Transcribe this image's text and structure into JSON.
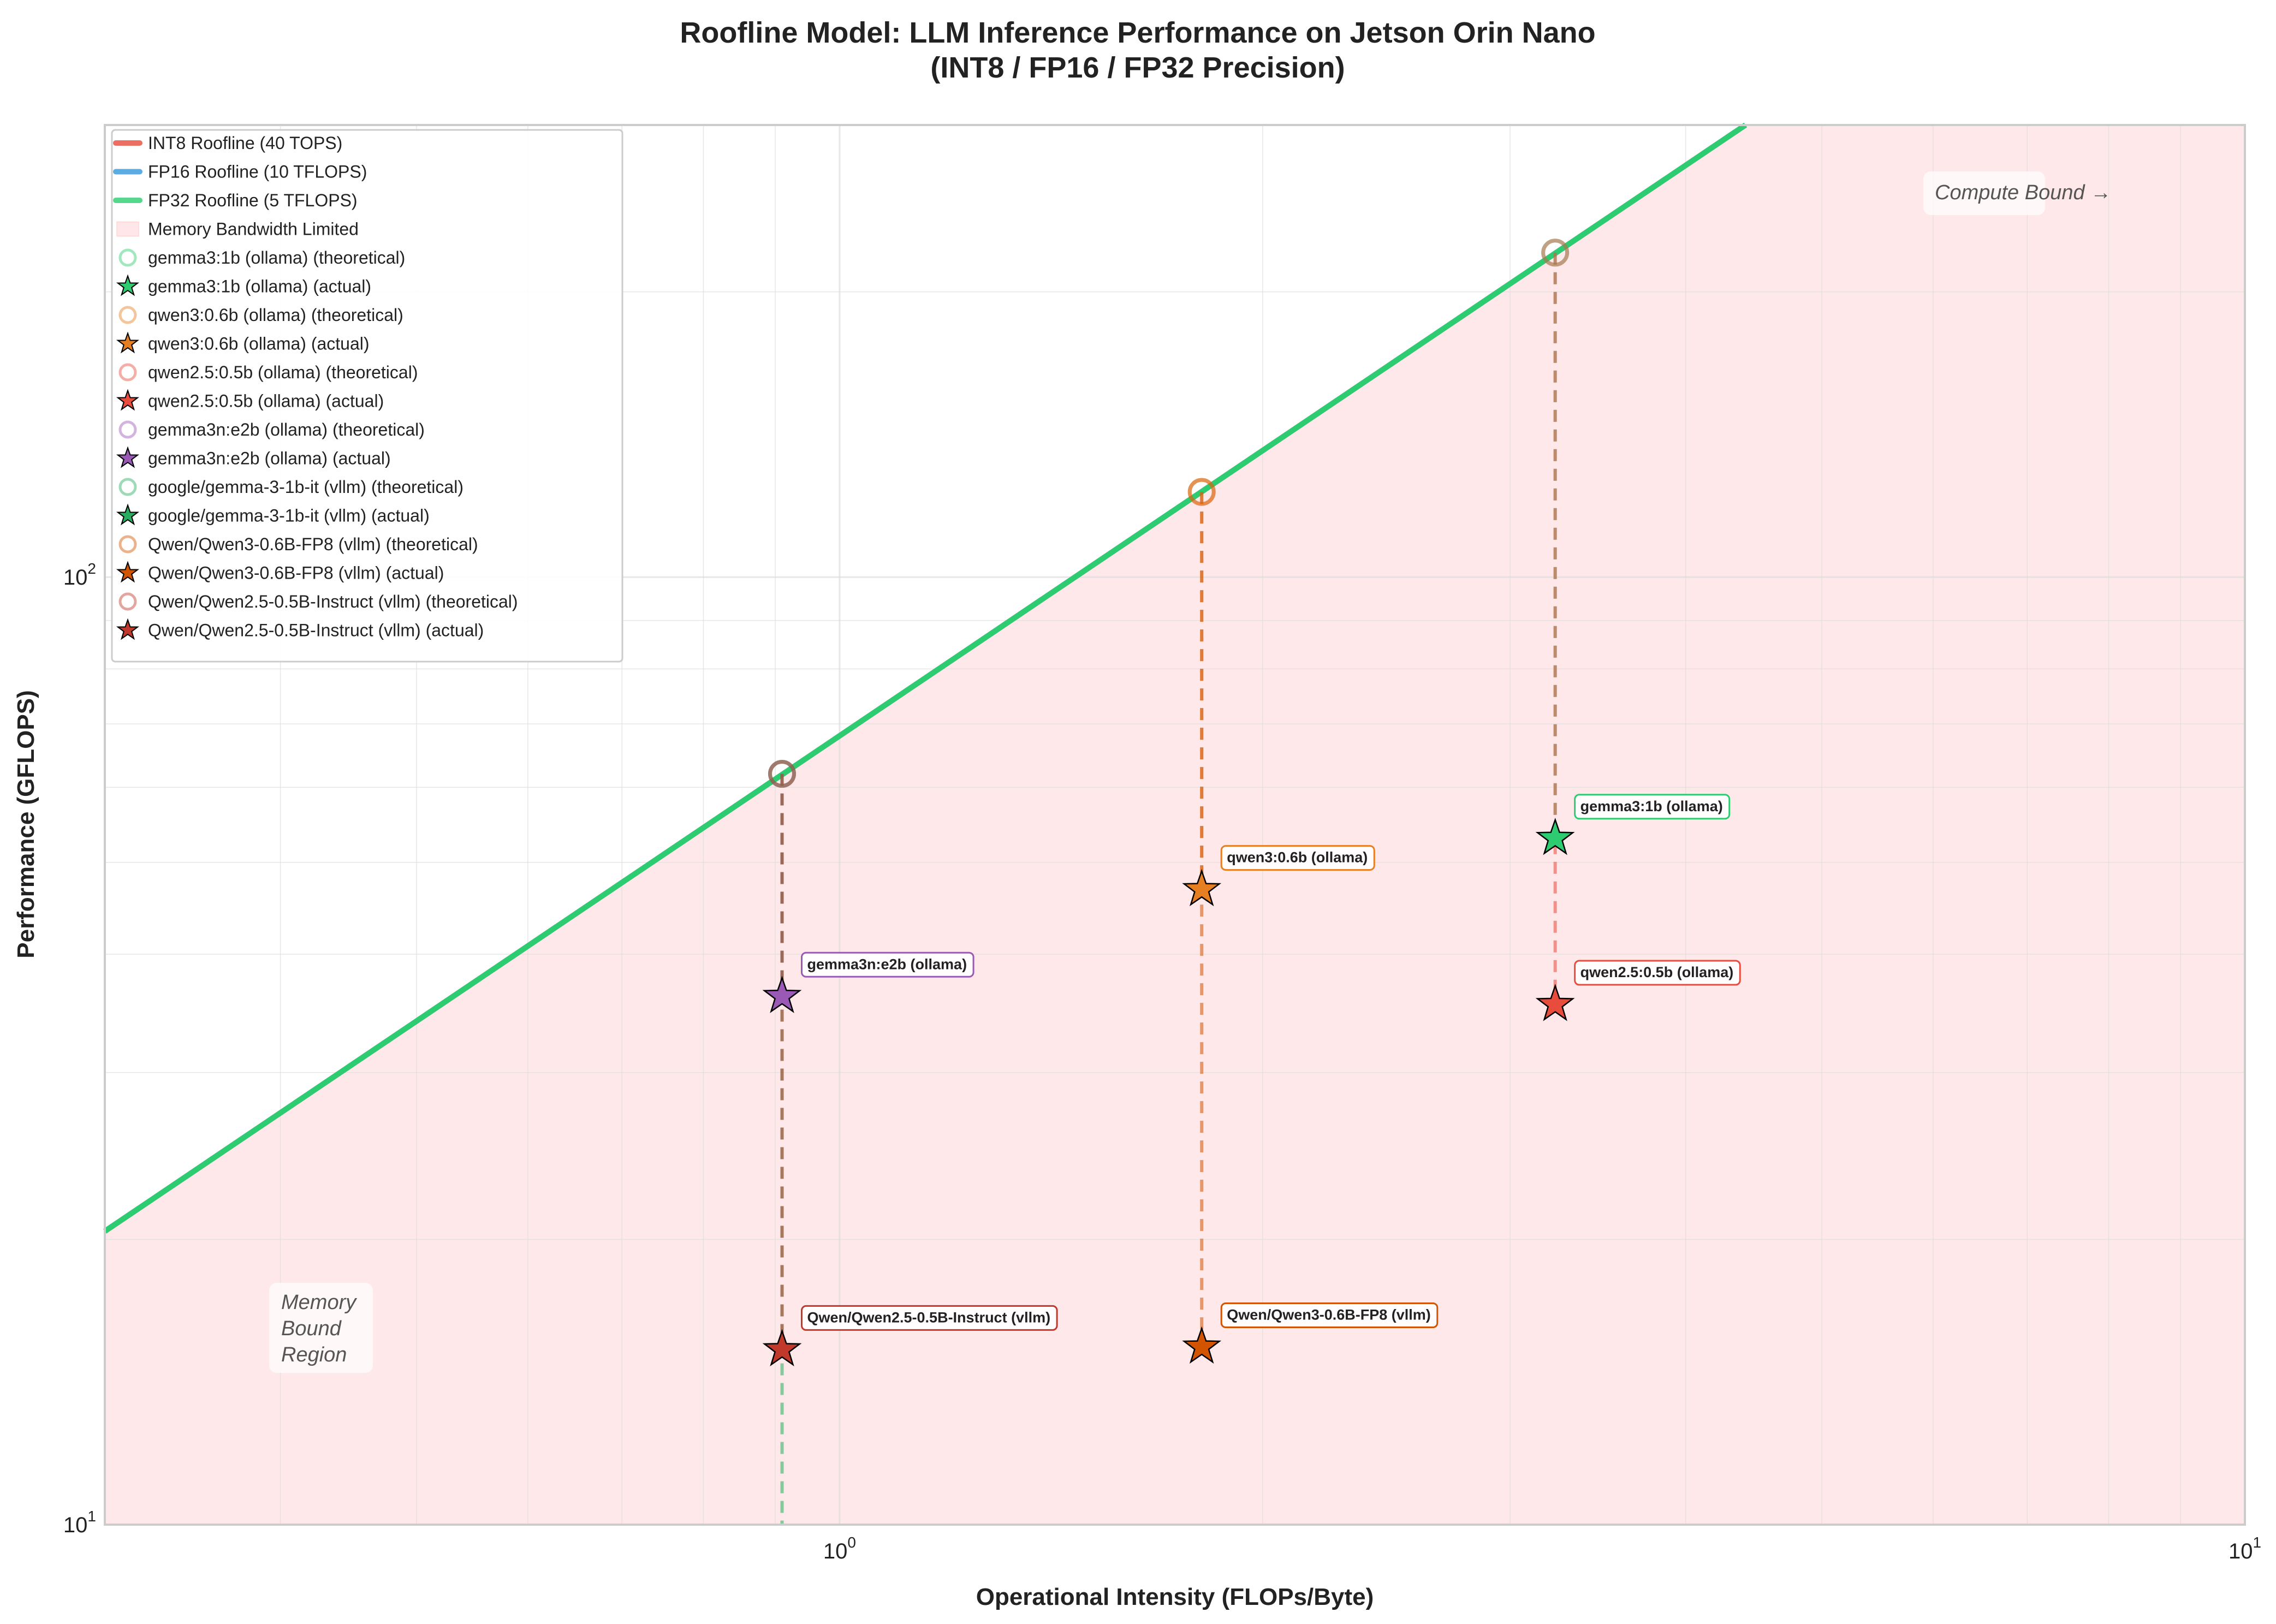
{
  "chart_data": {
    "type": "scatter",
    "title": "Roofline Model: LLM Inference Performance on Jetson Orin Nano",
    "subtitle": "(INT8 / FP16 / FP32 Precision)",
    "xlabel": "Operational Intensity (FLOPs/Byte)",
    "ylabel": "Performance (GFLOPS)",
    "xscale": "log",
    "yscale": "log",
    "xlim": [
      0.3,
      10
    ],
    "ylim": [
      10,
      300
    ],
    "x_ticks": [
      {
        "value": 1,
        "base": "10",
        "exp": "0"
      },
      {
        "value": 10,
        "base": "10",
        "exp": "1"
      }
    ],
    "y_ticks": [
      {
        "value": 10,
        "base": "10",
        "exp": "1"
      },
      {
        "value": 100,
        "base": "10",
        "exp": "2"
      }
    ],
    "grid": true,
    "legend_position": "top-left",
    "memory_bandwidth_gbps": 68,
    "rooflines": [
      {
        "name": "INT8 Roofline (40 TOPS)",
        "peak_gflops": 40000,
        "color": "#e74c3c"
      },
      {
        "name": "FP16 Roofline (10 TFLOPS)",
        "peak_gflops": 10000,
        "color": "#3498db"
      },
      {
        "name": "FP32 Roofline (5 TFLOPS)",
        "peak_gflops": 5000,
        "color": "#2ecc71"
      }
    ],
    "region_legend": {
      "name": "Memory Bandwidth Limited",
      "color": "#ffe6e8"
    },
    "models": [
      {
        "name": "gemma3:1b (ollama)",
        "label": "gemma3:1b (ollama)",
        "color": "#2ecc71",
        "x": 3.23,
        "theoretical": 220,
        "actual": 53
      },
      {
        "name": "qwen3:0.6b (ollama)",
        "label": "qwen3:0.6b (ollama)",
        "color": "#e67e22",
        "x": 1.81,
        "theoretical": 123,
        "actual": 46.8
      },
      {
        "name": "qwen2.5:0.5b (ollama)",
        "label": "qwen2.5:0.5b (ollama)",
        "color": "#e74c3c",
        "x": 3.23,
        "theoretical": 220,
        "actual": 35.4
      },
      {
        "name": "gemma3n:e2b (ollama)",
        "label": "gemma3n:e2b (ollama)",
        "color": "#9b59b6",
        "x": 0.91,
        "theoretical": 62,
        "actual": 36.1
      },
      {
        "name": "google/gemma-3-1b-it (vllm)",
        "label": "",
        "color": "#27ae60",
        "x": 0.91,
        "theoretical": 62,
        "actual": null
      },
      {
        "name": "Qwen/Qwen3-0.6B-FP8 (vllm)",
        "label": "Qwen/Qwen3-0.6B-FP8 (vllm)",
        "color": "#d35400",
        "x": 1.81,
        "theoretical": 123,
        "actual": 15.4
      },
      {
        "name": "Qwen/Qwen2.5-0.5B-Instruct (vllm)",
        "label": "Qwen/Qwen2.5-0.5B-Instruct (vllm)",
        "color": "#c0392b",
        "x": 0.91,
        "theoretical": 62,
        "actual": 15.3
      }
    ],
    "legend_suffix": {
      "theoretical": "(theoretical)",
      "actual": "(actual)"
    },
    "annotations": {
      "memory_bound": [
        "Memory",
        "Bound",
        "Region"
      ],
      "compute_bound": "Compute Bound →"
    }
  }
}
